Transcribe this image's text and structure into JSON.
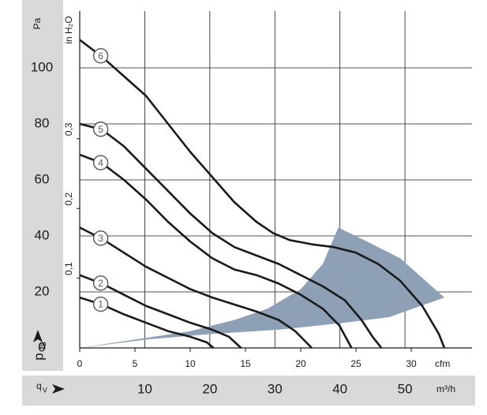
{
  "chart_data": {
    "type": "line",
    "y_unit": "Pa",
    "y_label": "p",
    "y_label_sub": "fs",
    "y2_label": "in H₂O",
    "x_unit": "cfm",
    "x2_label": "q",
    "x2_label_sub": "V",
    "x2_unit": "m³/h",
    "xlim": [
      0,
      35.5
    ],
    "xticks": [
      0,
      5,
      10,
      15,
      20,
      25,
      30
    ],
    "x2lim": [
      0,
      60.3
    ],
    "x2ticks": [
      10,
      20,
      30,
      40,
      50
    ],
    "ylim": [
      0,
      120
    ],
    "yticks": [
      0,
      20,
      40,
      60,
      80,
      100
    ],
    "y2lim": [
      0,
      0.482
    ],
    "y2ticks": [
      {
        "value": 0.1,
        "label": "0,1"
      },
      {
        "value": 0.2,
        "label": "0,2"
      },
      {
        "value": 0.3,
        "label": "0,3"
      }
    ],
    "grid": true,
    "series": [
      {
        "name": "1",
        "color": "#1a1a1a",
        "x": [
          0,
          2,
          4,
          6,
          8,
          10,
          11.5,
          12.1
        ],
        "values": [
          18,
          15.5,
          12,
          9,
          6,
          4,
          2,
          0
        ]
      },
      {
        "name": "2",
        "color": "#1a1a1a",
        "x": [
          0,
          2,
          4,
          6,
          8,
          10,
          12,
          13.5,
          14.6
        ],
        "values": [
          26,
          23,
          19,
          15,
          12,
          9,
          6.5,
          4,
          0
        ]
      },
      {
        "name": "3",
        "color": "#1a1a1a",
        "x": [
          0,
          2,
          4,
          6,
          8,
          10,
          12,
          14,
          16,
          18,
          19.5,
          21
        ],
        "values": [
          43,
          39,
          34,
          29,
          25,
          21,
          18,
          15.5,
          13,
          10,
          6,
          0
        ]
      },
      {
        "name": "4",
        "color": "#1a1a1a",
        "x": [
          0,
          2,
          4,
          6,
          8,
          10,
          12,
          14,
          16,
          18,
          20,
          22,
          23.5,
          24.6
        ],
        "values": [
          69,
          66,
          60,
          53,
          45,
          38,
          32,
          28,
          26,
          23,
          19,
          14,
          8,
          0
        ]
      },
      {
        "name": "5",
        "color": "#1a1a1a",
        "x": [
          0,
          2,
          4,
          6,
          8,
          10,
          12,
          14,
          16,
          18,
          20,
          22,
          24,
          25.5,
          26.5,
          27.3
        ],
        "values": [
          80,
          78,
          72,
          64,
          56,
          48,
          41,
          36,
          33,
          30,
          26,
          22,
          17,
          10,
          4,
          0
        ]
      },
      {
        "name": "6",
        "color": "#1a1a1a",
        "x": [
          0,
          2,
          4,
          6,
          8,
          10,
          12,
          14,
          16,
          17.5,
          19,
          21,
          23,
          25,
          27,
          29,
          31,
          32.5,
          33
        ],
        "values": [
          110,
          104,
          97,
          90,
          80,
          70,
          61,
          52,
          45,
          41,
          38.5,
          37,
          36,
          34,
          30,
          24,
          15,
          5,
          0
        ]
      }
    ],
    "operating_range": {
      "color": "#8da0b5",
      "x": [
        0,
        5,
        10,
        14,
        17,
        20,
        22,
        23.4,
        26,
        29,
        31,
        33,
        28,
        24,
        18,
        12,
        6
      ],
      "y": [
        0,
        3,
        6,
        10,
        14,
        21,
        30,
        43,
        38,
        32,
        25,
        18,
        11,
        9,
        6.5,
        5,
        3
      ]
    }
  }
}
